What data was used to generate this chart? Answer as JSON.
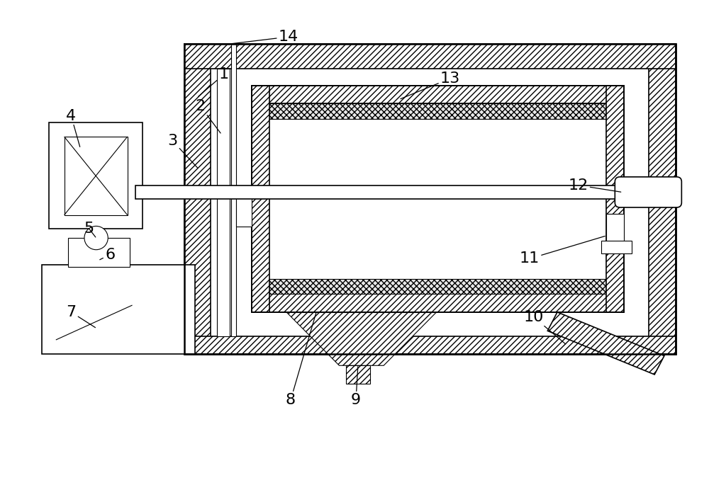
{
  "bg_color": "#ffffff",
  "line_color": "#000000",
  "figsize": [
    10.0,
    6.78
  ],
  "dpi": 100,
  "lw_thin": 0.8,
  "lw_main": 1.2,
  "lw_thick": 1.8
}
